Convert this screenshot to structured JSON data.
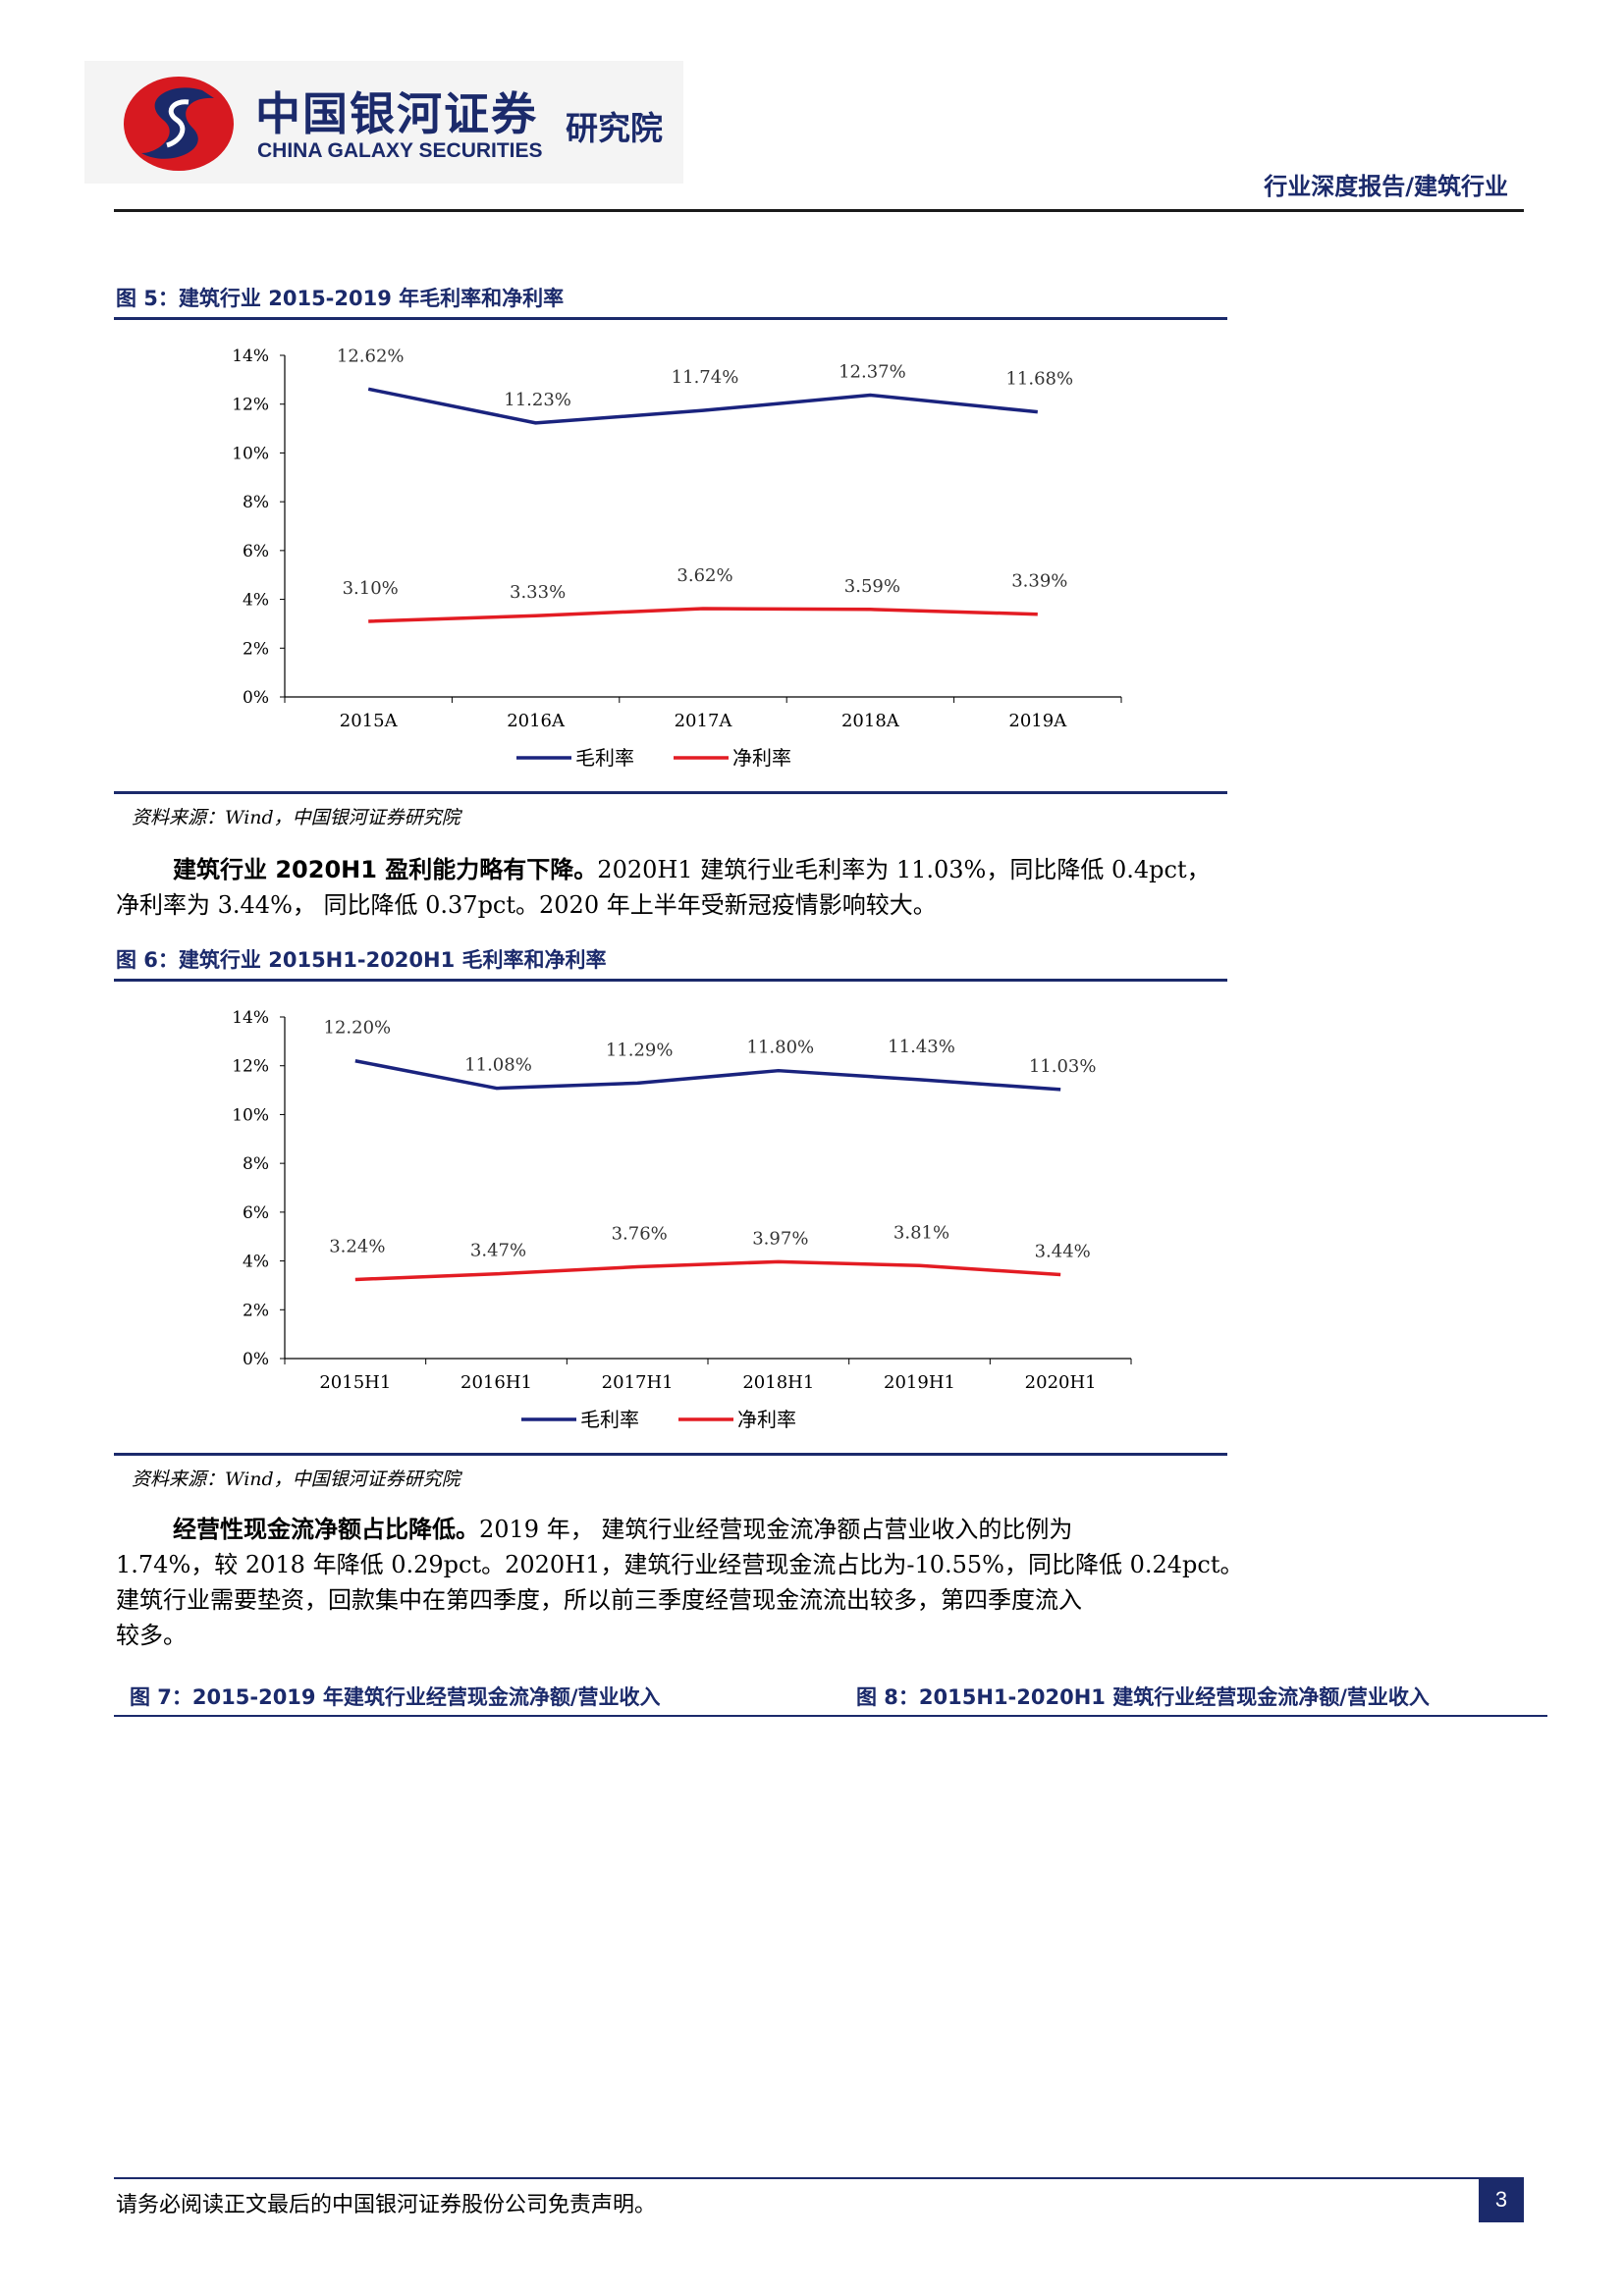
{
  "header": {
    "logo_cn": "中国银河证券",
    "logo_en": "CHINA GALAXY SECURITIES",
    "logo_suffix": "研究院",
    "report_tag": "行业深度报告/建筑行业"
  },
  "figures": [
    {
      "title": "图 5：建筑行业 2015-2019 年毛利率和净利率",
      "source": "资料来源：Wind，中国银河证券研究院"
    },
    {
      "title": "图 6：建筑行业 2015H1-2020H1 毛利率和净利率",
      "source": "资料来源：Wind，中国银河证券研究院"
    }
  ],
  "paragraphs": [
    {
      "lead": "建筑行业 2020H1 盈利能力略有下降。",
      "lines": [
        "2020H1 建筑行业毛利率为 11.03%，同比降低 0.4pct，",
        "净利率为 3.44%， 同比降低 0.37pct。2020 年上半年受新冠疫情影响较大。"
      ]
    },
    {
      "lead": "经营性现金流净额占比降低。",
      "lines": [
        "2019 年， 建筑行业经营现金流净额占营业收入的比例为",
        "1.74%，较 2018 年降低 0.29pct。2020H1，建筑行业经营现金流占比为-10.55%，同比降低 0.24pct。",
        "建筑行业需要垫资，回款集中在第四季度，所以前三季度经营现金流流出较多，第四季度流入",
        "较多。"
      ]
    }
  ],
  "bottom_figures": {
    "fig7_title": "图 7：2015-2019 年建筑行业经营现金流净额/营业收入",
    "fig8_title": "图 8：2015H1-2020H1 建筑行业经营现金流净额/营业收入"
  },
  "footer": {
    "disclaimer": "请务必阅读正文最后的中国银河证券股份公司免责声明。",
    "page_number": "3"
  },
  "colors": {
    "brand_navy": "#1b2a6b",
    "gross_margin_line": "#1a237e",
    "net_margin_line": "#e31c23"
  },
  "chart_data": [
    {
      "type": "line",
      "categories": [
        "2015A",
        "2016A",
        "2017A",
        "2018A",
        "2019A"
      ],
      "series": [
        {
          "name": "毛利率",
          "values": [
            12.62,
            11.23,
            11.74,
            12.37,
            11.68
          ],
          "labels": [
            "12.62%",
            "11.23%",
            "11.74%",
            "12.37%",
            "11.68%"
          ],
          "color": "#1a237e"
        },
        {
          "name": "净利率",
          "values": [
            3.1,
            3.33,
            3.62,
            3.59,
            3.39
          ],
          "labels": [
            "3.10%",
            "3.33%",
            "3.62%",
            "3.59%",
            "3.39%"
          ],
          "color": "#e31c23"
        }
      ],
      "ylim": [
        0,
        14
      ],
      "yticks": [
        0,
        2,
        4,
        6,
        8,
        10,
        12,
        14
      ],
      "ytick_labels": [
        "0%",
        "2%",
        "4%",
        "6%",
        "8%",
        "10%",
        "12%",
        "14%"
      ],
      "grid": false,
      "legend": "bottom"
    },
    {
      "type": "line",
      "categories": [
        "2015H1",
        "2016H1",
        "2017H1",
        "2018H1",
        "2019H1",
        "2020H1"
      ],
      "series": [
        {
          "name": "毛利率",
          "values": [
            12.2,
            11.08,
            11.29,
            11.8,
            11.43,
            11.03
          ],
          "labels": [
            "12.20%",
            "11.08%",
            "11.29%",
            "11.80%",
            "11.43%",
            "11.03%"
          ],
          "color": "#1a237e"
        },
        {
          "name": "净利率",
          "values": [
            3.24,
            3.47,
            3.76,
            3.97,
            3.81,
            3.44
          ],
          "labels": [
            "3.24%",
            "3.47%",
            "3.76%",
            "3.97%",
            "3.81%",
            "3.44%"
          ],
          "color": "#e31c23"
        }
      ],
      "ylim": [
        0,
        14
      ],
      "yticks": [
        0,
        2,
        4,
        6,
        8,
        10,
        12,
        14
      ],
      "ytick_labels": [
        "0%",
        "2%",
        "4%",
        "6%",
        "8%",
        "10%",
        "12%",
        "14%"
      ],
      "grid": false,
      "legend": "bottom"
    }
  ]
}
